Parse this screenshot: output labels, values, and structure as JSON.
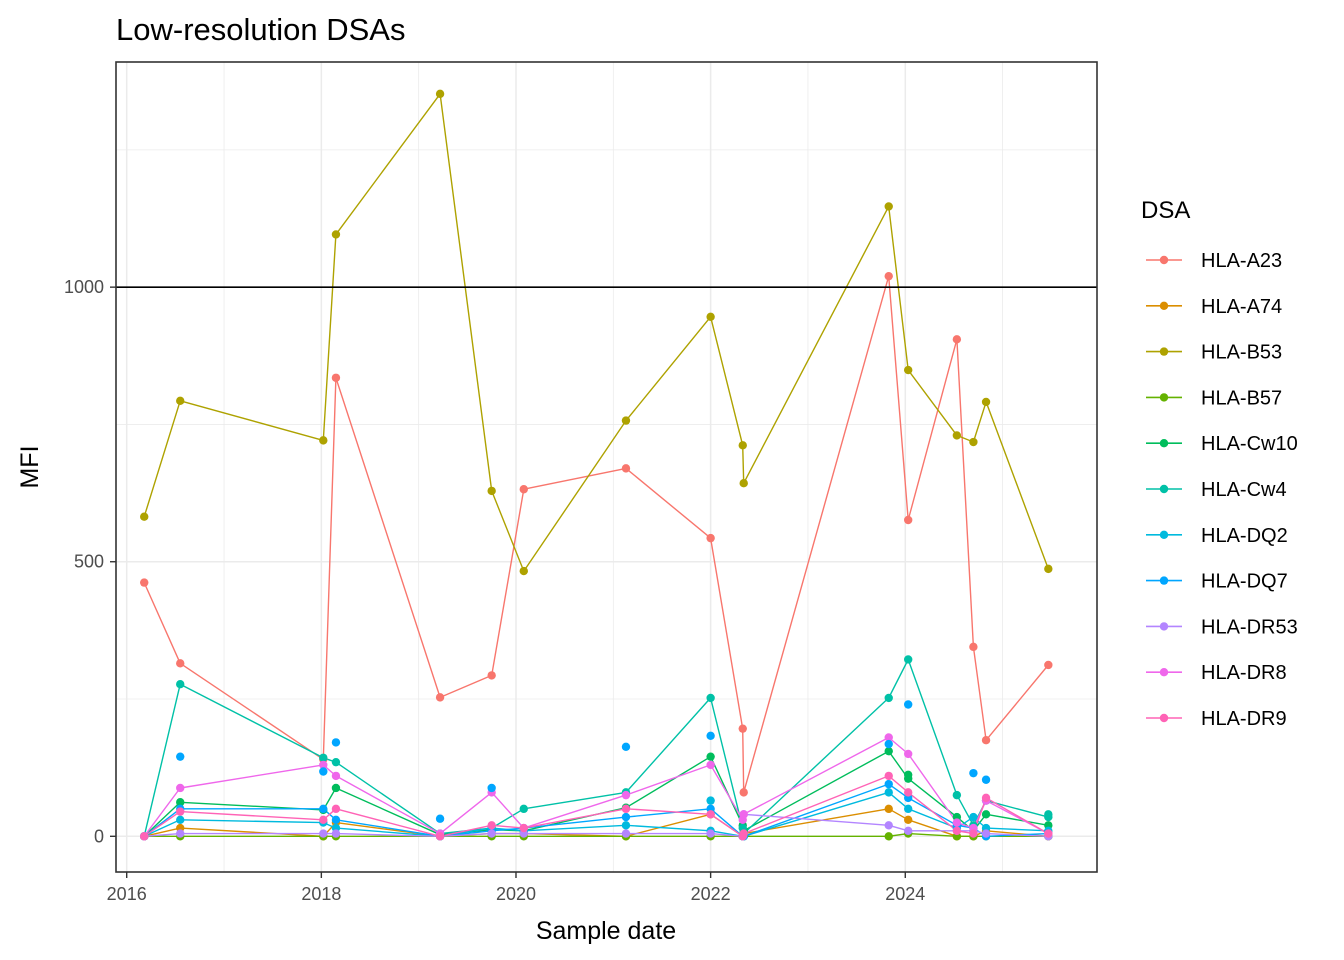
{
  "chart_data": {
    "type": "line",
    "title": "Low-resolution DSAs",
    "xlabel": "Sample date",
    "ylabel": "MFI",
    "xlim": [
      2015.89,
      2025.97
    ],
    "ylim": [
      -65,
      1410
    ],
    "xticks": [
      2016,
      2018,
      2020,
      2022,
      2024
    ],
    "xtick_labels": [
      "2016",
      "2018",
      "2020",
      "2022",
      "2024"
    ],
    "yticks": [
      0,
      500,
      1000
    ],
    "ytick_labels": [
      "0",
      "500",
      "1000"
    ],
    "grid": true,
    "reference_line": 1000,
    "legend": {
      "title": "DSA",
      "position": "right"
    },
    "x": [
      2016.18,
      2016.55,
      2018.02,
      2018.15,
      2019.22,
      2019.75,
      2020.08,
      2021.13,
      2022.0,
      2022.33,
      2022.34,
      2023.83,
      2024.03,
      2024.53,
      2024.7,
      2024.83,
      2025.47
    ],
    "series": [
      {
        "name": "HLA-A23",
        "color": "#F8766D",
        "values": [
          462,
          315,
          140,
          835,
          253,
          293,
          632,
          670,
          543,
          196,
          80,
          1020,
          576,
          905,
          345,
          175,
          312
        ]
      },
      {
        "name": "HLA-A74",
        "color": "#DB8E00",
        "values": [
          0,
          15,
          0,
          25,
          0,
          5,
          5,
          0,
          40,
          0,
          5,
          50,
          30,
          0,
          0,
          10,
          0
        ]
      },
      {
        "name": "HLA-B53",
        "color": "#AEA200",
        "values": [
          582,
          793,
          721,
          1096,
          1352,
          629,
          483,
          757,
          946,
          712,
          643,
          1147,
          849,
          730,
          718,
          791,
          487
        ]
      },
      {
        "name": "HLA-B57",
        "color": "#64B200",
        "values": [
          0,
          0,
          0,
          0,
          0,
          0,
          0,
          0,
          0,
          0,
          0,
          0,
          5,
          0,
          0,
          0,
          0
        ]
      },
      {
        "name": "HLA-Cw10",
        "color": "#00BD5C",
        "values": [
          0,
          62,
          48,
          88,
          3,
          12,
          10,
          52,
          145,
          20,
          10,
          155,
          105,
          35,
          10,
          40,
          20
        ]
      },
      {
        "name": "HLA-Cw4",
        "color": "#00C1A7",
        "values": [
          0,
          277,
          143,
          135,
          5,
          15,
          50,
          80,
          252,
          15,
          5,
          252,
          322,
          75,
          20,
          65,
          35
        ]
      },
      {
        "name": "HLA-DQ2",
        "color": "#00BADE",
        "values": [
          0,
          30,
          25,
          15,
          0,
          15,
          10,
          20,
          10,
          0,
          0,
          80,
          50,
          15,
          35,
          15,
          10
        ]
      },
      {
        "name": "HLA-DQ7",
        "color": "#00A6FF",
        "values": [
          0,
          50,
          50,
          30,
          0,
          10,
          15,
          35,
          50,
          0,
          0,
          95,
          70,
          20,
          15,
          0,
          5
        ]
      },
      {
        "name": "HLA-DR53",
        "color": "#B385FF",
        "values": [
          0,
          5,
          5,
          5,
          0,
          5,
          5,
          5,
          5,
          0,
          40,
          20,
          10,
          10,
          10,
          5,
          0
        ]
      },
      {
        "name": "HLA-DR8",
        "color": "#EF67EB",
        "values": [
          0,
          88,
          130,
          110,
          5,
          80,
          15,
          75,
          130,
          30,
          40,
          180,
          150,
          25,
          15,
          65,
          5
        ]
      },
      {
        "name": "HLA-DR9",
        "color": "#FF63B6",
        "values": [
          0,
          45,
          30,
          50,
          0,
          20,
          15,
          50,
          40,
          0,
          5,
          110,
          80,
          10,
          5,
          70,
          5
        ]
      }
    ],
    "extra_points": [
      {
        "series": "HLA-DQ7",
        "x": 2016.55,
        "value": 145
      },
      {
        "series": "HLA-DQ7",
        "x": 2018.02,
        "value": 118
      },
      {
        "series": "HLA-DQ7",
        "x": 2018.15,
        "value": 171
      },
      {
        "series": "HLA-DQ7",
        "x": 2019.22,
        "value": 32
      },
      {
        "series": "HLA-DQ7",
        "x": 2019.75,
        "value": 88
      },
      {
        "series": "HLA-DQ7",
        "x": 2021.13,
        "value": 163
      },
      {
        "series": "HLA-DQ7",
        "x": 2022.0,
        "value": 183
      },
      {
        "series": "HLA-DQ2",
        "x": 2022.0,
        "value": 65
      },
      {
        "series": "HLA-DQ7",
        "x": 2023.83,
        "value": 168
      },
      {
        "series": "HLA-DQ7",
        "x": 2024.03,
        "value": 240
      },
      {
        "series": "HLA-DQ7",
        "x": 2024.7,
        "value": 115
      },
      {
        "series": "HLA-DQ7",
        "x": 2024.83,
        "value": 103
      },
      {
        "series": "HLA-Cw10",
        "x": 2024.03,
        "value": 112
      },
      {
        "series": "HLA-Cw4",
        "x": 2025.47,
        "value": 40
      }
    ]
  }
}
